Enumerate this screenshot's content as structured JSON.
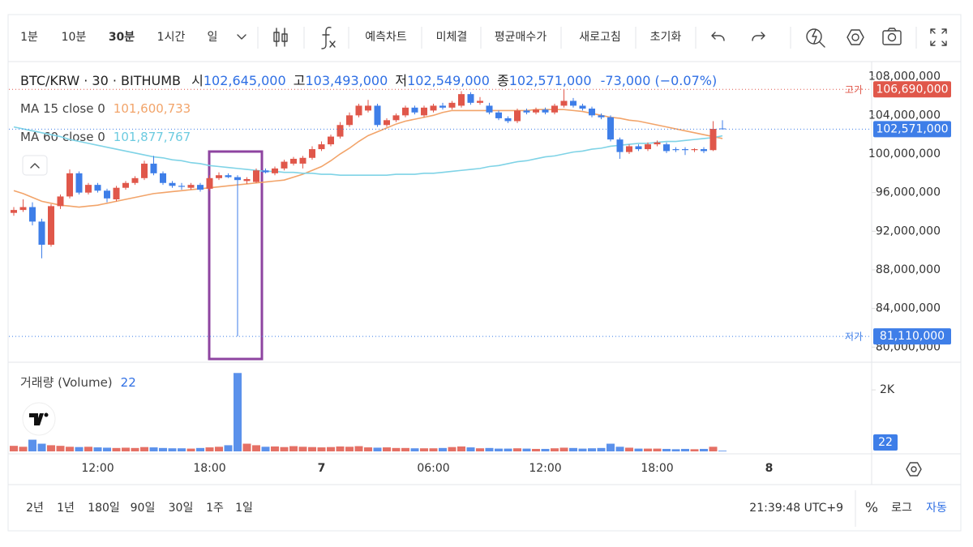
{
  "toolbar": {
    "intervals": [
      "1분",
      "10분",
      "30분",
      "1시간",
      "일"
    ],
    "active_interval": 2,
    "actions": [
      "예측차트",
      "미체결",
      "평균매수가",
      "새로고침",
      "초기화"
    ]
  },
  "footer": {
    "ranges": [
      "2년",
      "1년",
      "180일",
      "90일",
      "30일",
      "1주",
      "1일"
    ],
    "time": "21:39:48 UTC+9",
    "percent": "%",
    "log": "로그",
    "auto": "자동"
  },
  "chart_data": {
    "type": "candlestick",
    "title": "BTC/KRW · 30 · BITHUMB",
    "legend_values": {
      "open_label": "시",
      "open": "102,645,000",
      "high_label": "고",
      "high": "103,493,000",
      "low_label": "저",
      "low": "102,549,000",
      "close_label": "종",
      "close": "102,571,000",
      "change": "-73,000 (−0.07%)"
    },
    "up_color": "#e0574a",
    "down_color": "#3e7ee8",
    "categories": [
      null,
      null,
      null,
      null,
      null,
      null,
      null,
      null,
      null,
      "12:00",
      null,
      null,
      null,
      null,
      null,
      null,
      null,
      null,
      null,
      null,
      null,
      "18:00",
      null,
      null,
      null,
      null,
      null,
      null,
      null,
      null,
      null,
      null,
      null,
      "7",
      null,
      null,
      null,
      null,
      null,
      null,
      null,
      null,
      null,
      null,
      null,
      "06:00",
      null,
      null,
      null,
      null,
      null,
      null,
      null,
      null,
      null,
      null,
      null,
      "12:00",
      null,
      null,
      null,
      null,
      null,
      null,
      null,
      null,
      null,
      null,
      null,
      "18:00",
      null,
      null,
      null,
      null,
      null,
      null,
      null,
      null,
      null,
      null,
      null,
      "8"
    ],
    "open": [
      93900000,
      94200000,
      94500000,
      93000000,
      90600000,
      94600000,
      95600000,
      98000000,
      96000000,
      96800000,
      96200000,
      95300000,
      96500000,
      97000000,
      97500000,
      99000000,
      98000000,
      97000000,
      96700000,
      96500000,
      96800000,
      96400000,
      97500000,
      97800000,
      97600000,
      97200000,
      97100000,
      98300000,
      98000000,
      98500000,
      99000000,
      99000000,
      99600000,
      100500000,
      101000000,
      101800000,
      103000000,
      104000000,
      104500000,
      105000000,
      103000000,
      103500000,
      104000000,
      104800000,
      104000000,
      104500000,
      105000000,
      104800000,
      105000000,
      106200000,
      105300000,
      105000000,
      104300000,
      103700000,
      103400000,
      104500000,
      104300000,
      104600000,
      104300000,
      105000000,
      105500000,
      105000000,
      104700000,
      104000000,
      103800000,
      101500000,
      100200000,
      100800000,
      100500000,
      101000000,
      101000000,
      100500000,
      100500000,
      100400000,
      100500000,
      100400000,
      102645000,
      null,
      null,
      null,
      null,
      null
    ],
    "high": [
      94500000,
      95300000,
      95000000,
      93300000,
      94800000,
      95800000,
      98400000,
      98200000,
      97000000,
      97000000,
      96400000,
      96700000,
      97200000,
      97700000,
      99300000,
      99800000,
      98200000,
      97200000,
      97000000,
      97000000,
      97000000,
      97800000,
      98100000,
      98000000,
      97800000,
      97600000,
      98500000,
      98500000,
      98700000,
      99400000,
      99700000,
      99800000,
      100800000,
      101300000,
      102000000,
      103300000,
      104300000,
      105200000,
      105600000,
      105200000,
      103700000,
      104200000,
      105000000,
      105000000,
      105000000,
      105200000,
      105300000,
      105500000,
      106500000,
      106400000,
      105900000,
      105300000,
      104500000,
      103900000,
      104700000,
      104700000,
      104800000,
      104800000,
      105200000,
      106690000,
      105800000,
      105200000,
      104900000,
      104200000,
      104000000,
      101700000,
      101000000,
      101000000,
      101200000,
      101400000,
      101200000,
      100700000,
      100700000,
      100600000,
      100700000,
      103400000,
      103493000,
      null,
      null,
      null,
      null,
      null
    ],
    "low": [
      93600000,
      94000000,
      92600000,
      89200000,
      90400000,
      94300000,
      95400000,
      95800000,
      95800000,
      96000000,
      95000000,
      95100000,
      96300000,
      96800000,
      97300000,
      97800000,
      96800000,
      96500000,
      96300000,
      96300000,
      96100000,
      96200000,
      97300000,
      97500000,
      81110000,
      96900000,
      97000000,
      98000000,
      97800000,
      98300000,
      98800000,
      98500000,
      99400000,
      100300000,
      100800000,
      101600000,
      102800000,
      103800000,
      104300000,
      102800000,
      102800000,
      103300000,
      103800000,
      104100000,
      103800000,
      104300000,
      104600000,
      104600000,
      104800000,
      105100000,
      105100000,
      104100000,
      103500000,
      103200000,
      103200000,
      104100000,
      104100000,
      104100000,
      104100000,
      104800000,
      104800000,
      104500000,
      103800000,
      103600000,
      101300000,
      99500000,
      100000000,
      100300000,
      100300000,
      100800000,
      100100000,
      100200000,
      99900000,
      100200000,
      100100000,
      100300000,
      102549000,
      null,
      null,
      null,
      null,
      null
    ],
    "close": [
      94200000,
      94500000,
      93000000,
      90600000,
      94600000,
      95600000,
      98000000,
      96000000,
      96800000,
      96200000,
      95400000,
      96500000,
      97000000,
      97500000,
      99000000,
      98000000,
      97000000,
      96700000,
      96600000,
      96800000,
      96300000,
      97500000,
      97800000,
      97600000,
      97300000,
      97400000,
      98300000,
      98100000,
      98500000,
      99200000,
      99500000,
      99600000,
      100500000,
      101000000,
      101800000,
      103000000,
      104000000,
      105000000,
      105000000,
      103000000,
      103500000,
      104000000,
      104800000,
      104300000,
      104800000,
      105000000,
      104800000,
      105300000,
      106200000,
      105300000,
      105500000,
      104300000,
      103700000,
      103400000,
      104500000,
      104300000,
      104600000,
      104300000,
      105000000,
      105500000,
      105000000,
      104700000,
      104000000,
      103800000,
      101500000,
      100200000,
      100800000,
      100500000,
      101000000,
      101200000,
      100300000,
      100400000,
      100400000,
      100500000,
      100300000,
      102600000,
      102571000,
      null,
      null,
      null,
      null,
      null
    ],
    "series": [
      {
        "name": "MA 15 close 0",
        "color": "#f2a46a",
        "last_label": "101,600,733",
        "values": [
          96200000,
          95900000,
          95500000,
          95100000,
          94900000,
          94700000,
          94600000,
          94500000,
          94600000,
          94700000,
          94900000,
          95100000,
          95300000,
          95500000,
          95700000,
          95900000,
          96000000,
          96100000,
          96200000,
          96300000,
          96400000,
          96500000,
          96600000,
          96700000,
          96800000,
          96900000,
          97000000,
          97100000,
          97200000,
          97300000,
          97600000,
          97900000,
          98300000,
          98700000,
          99300000,
          100000000,
          100600000,
          101300000,
          101900000,
          102300000,
          102700000,
          103100000,
          103400000,
          103600000,
          103800000,
          104000000,
          104300000,
          104500000,
          104500000,
          104500000,
          104500000,
          104500000,
          104500000,
          104500000,
          104500000,
          104500000,
          104600000,
          104600000,
          104600000,
          104600000,
          104500000,
          104400000,
          104200000,
          104000000,
          103800000,
          103700000,
          103500000,
          103400000,
          103200000,
          103000000,
          102800000,
          102600000,
          102400000,
          102200000,
          102000000,
          101800000,
          101600733,
          null,
          null,
          null,
          null,
          null
        ]
      },
      {
        "name": "MA 60 close 0",
        "color": "#7fd3e6",
        "last_label": "101,877,767",
        "values": [
          102800000,
          102600000,
          102400000,
          102200000,
          102000000,
          101800000,
          101500000,
          101300000,
          101100000,
          100900000,
          100700000,
          100500000,
          100300000,
          100100000,
          99900000,
          99700000,
          99600000,
          99400000,
          99300000,
          99100000,
          99000000,
          98800000,
          98700000,
          98600000,
          98500000,
          98400000,
          98300000,
          98200000,
          98200000,
          98100000,
          98100000,
          98000000,
          98000000,
          97900000,
          97900000,
          97800000,
          97800000,
          97800000,
          97800000,
          97800000,
          97800000,
          97900000,
          97900000,
          97900000,
          98000000,
          98000000,
          98100000,
          98200000,
          98300000,
          98400000,
          98500000,
          98700000,
          98800000,
          99000000,
          99200000,
          99300000,
          99500000,
          99700000,
          99800000,
          100000000,
          100200000,
          100300000,
          100500000,
          100600000,
          100800000,
          100900000,
          101000000,
          101100000,
          101100000,
          101200000,
          101300000,
          101300000,
          101400000,
          101500000,
          101600000,
          101700000,
          101877767,
          null,
          null,
          null,
          null,
          null
        ]
      }
    ],
    "extremes": {
      "high_label": "고가",
      "high_value_label": "106,690,000",
      "low_label": "저가",
      "low_value_label": "81,110,000",
      "last_value_label": "102,571,000"
    },
    "ylim": [
      78600000,
      109400000
    ],
    "yticks": [
      {
        "value": 80000000,
        "label": "80,000,000"
      },
      {
        "value": 84000000,
        "label": "84,000,000"
      },
      {
        "value": 88000000,
        "label": "88,000,000"
      },
      {
        "value": 92000000,
        "label": "92,000,000"
      },
      {
        "value": 96000000,
        "label": "96,000,000"
      },
      {
        "value": 100000000,
        "label": "100,000,000"
      },
      {
        "value": 104000000,
        "label": "104,000,000"
      },
      {
        "value": 108000000,
        "label": "108,000,000"
      }
    ],
    "grid": false,
    "volume": {
      "name": "거래량 (Volume)",
      "ylim": [
        0,
        2900
      ],
      "yticks": [
        {
          "value": 2000,
          "label": "2K"
        }
      ],
      "values": [
        180,
        150,
        380,
        250,
        200,
        180,
        150,
        140,
        150,
        130,
        120,
        110,
        120,
        110,
        140,
        130,
        110,
        100,
        100,
        90,
        110,
        130,
        150,
        200,
        2550,
        250,
        200,
        150,
        160,
        140,
        170,
        150,
        140,
        130,
        140,
        160,
        150,
        170,
        130,
        120,
        130,
        110,
        110,
        100,
        100,
        100,
        110,
        140,
        160,
        130,
        100,
        110,
        90,
        90,
        100,
        90,
        80,
        80,
        100,
        120,
        110,
        90,
        100,
        110,
        250,
        150,
        120,
        90,
        90,
        90,
        80,
        70,
        80,
        70,
        80,
        150,
        22,
        null,
        null,
        null,
        null,
        null
      ]
    }
  }
}
